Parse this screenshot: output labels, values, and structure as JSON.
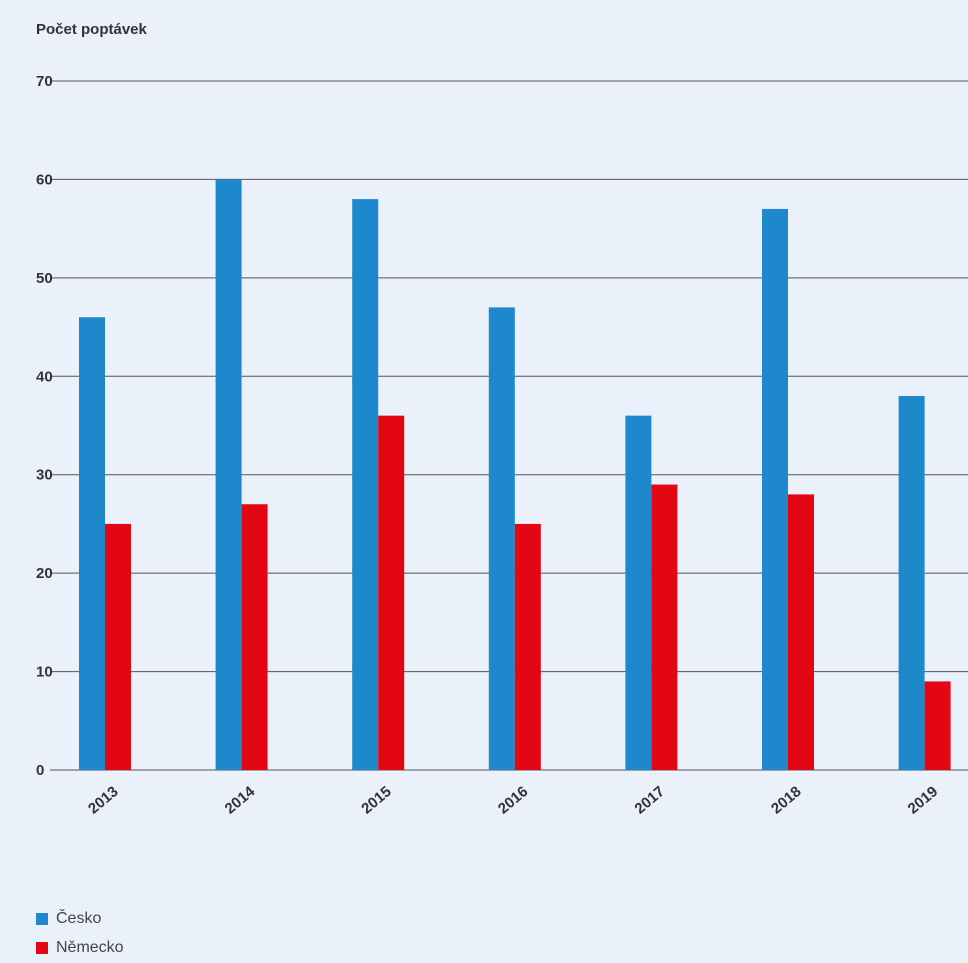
{
  "chart_data": {
    "type": "bar",
    "ylabel": "Počet poptávek",
    "categories": [
      "2013",
      "2014",
      "2015",
      "2016",
      "2017",
      "2018",
      "2019"
    ],
    "series": [
      {
        "name": "Česko",
        "color": "#1e88cc",
        "values": [
          46,
          60,
          58,
          47,
          36,
          57,
          38
        ]
      },
      {
        "name": "Německo",
        "color": "#e30613",
        "values": [
          25,
          27,
          36,
          25,
          29,
          28,
          9
        ]
      }
    ],
    "ylim": [
      0,
      70
    ],
    "yticks": [
      0,
      10,
      20,
      30,
      40,
      50,
      60,
      70
    ],
    "grid": true,
    "legend_position": "bottom-left"
  }
}
